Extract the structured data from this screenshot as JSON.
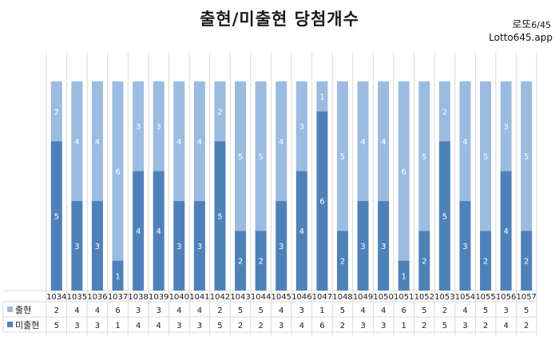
{
  "title": "출현/미출현 당첨개수",
  "brand": {
    "line1_main": "로또",
    "line1_sub": "6/45",
    "line2": "Lotto645.app"
  },
  "colors": {
    "appeared": "#9bbbe0",
    "not_appeared": "#4f81b9",
    "grid": "#d9d9d9",
    "text": "#1a1a1a"
  },
  "chart_data": {
    "type": "bar",
    "stacked": true,
    "categories": [
      "1034",
      "1035",
      "1036",
      "1037",
      "1038",
      "1039",
      "1040",
      "1041",
      "1042",
      "1043",
      "1044",
      "1045",
      "1046",
      "1047",
      "1048",
      "1049",
      "1050",
      "1051",
      "1052",
      "1053",
      "1054",
      "1055",
      "1056",
      "1057"
    ],
    "series": [
      {
        "name": "미출현",
        "values": [
          5,
          3,
          3,
          1,
          4,
          4,
          3,
          3,
          5,
          2,
          2,
          3,
          4,
          6,
          2,
          3,
          3,
          1,
          2,
          5,
          3,
          2,
          4,
          2
        ]
      },
      {
        "name": "출현",
        "values": [
          2,
          4,
          4,
          6,
          3,
          3,
          4,
          4,
          2,
          5,
          5,
          4,
          3,
          1,
          5,
          4,
          4,
          6,
          5,
          2,
          4,
          5,
          3,
          5
        ]
      }
    ],
    "ylim": [
      0,
      7
    ],
    "data_table": true
  }
}
